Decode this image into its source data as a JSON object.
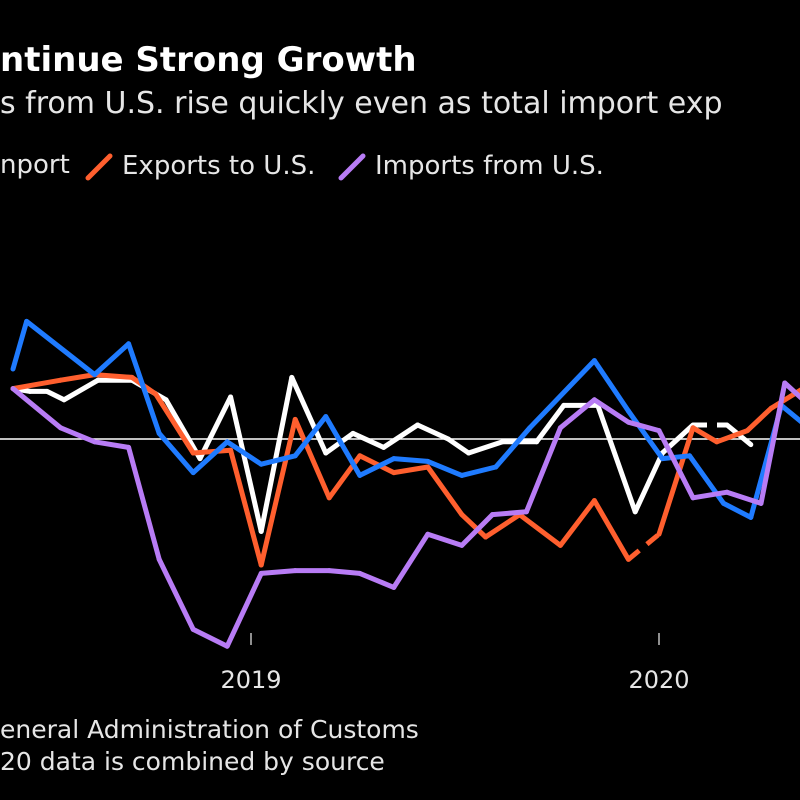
{
  "header": {
    "title": "ntinue Strong Growth",
    "subtitle": "s from U.S. rise quickly even as total import exp"
  },
  "legend": [
    {
      "label": "nport",
      "color": "#ffffff"
    },
    {
      "label": "Exports to U.S.",
      "color": "#ff5f2e"
    },
    {
      "label": "Imports from U.S.",
      "color": "#b87cf5"
    }
  ],
  "source": {
    "line1": "eneral Administration of Customs",
    "line2": "20 data is combined by source"
  },
  "colors": {
    "background": "#000000",
    "white_series": "#ffffff",
    "blue_series": "#1f7bff",
    "orange_series": "#ff5f2e",
    "purple_series": "#b87cf5"
  },
  "chart_data": {
    "type": "line",
    "x_unit": "month index (0 = 2018-06)",
    "x_ticks": [
      {
        "label": "2019",
        "x": 7
      },
      {
        "label": "2020",
        "x": 19
      }
    ],
    "xlim": [
      0,
      23.6
    ],
    "ylim": [
      -1,
      1
    ],
    "zero_line": true,
    "series": [
      {
        "name": "nport",
        "color": "#ffffff",
        "points": [
          [
            0,
            0.18
          ],
          [
            0.5,
            0.17
          ],
          [
            1,
            0.17
          ],
          [
            1.5,
            0.14
          ],
          [
            2.5,
            0.21
          ],
          [
            3.5,
            0.21
          ],
          [
            4.5,
            0.14
          ],
          [
            5.5,
            -0.07
          ],
          [
            6.4,
            0.15
          ],
          [
            7.3,
            -0.33
          ],
          [
            8.2,
            0.22
          ],
          [
            9.2,
            -0.05
          ],
          [
            10,
            0.02
          ],
          [
            10.9,
            -0.03
          ],
          [
            11.9,
            0.05
          ],
          [
            12.8,
            0
          ],
          [
            13.4,
            -0.05
          ],
          [
            14.4,
            -0.01
          ],
          [
            15.4,
            -0.01
          ],
          [
            16.2,
            0.12
          ],
          [
            17.2,
            0.12
          ],
          [
            17.2,
            0.12
          ],
          [
            18.3,
            -0.26
          ],
          [
            19.1,
            -0.05
          ],
          [
            20,
            0.05
          ],
          [
            21,
            0.05
          ],
          [
            21.7,
            -0.02
          ]
        ],
        "dashed_segments": [
          [
            20,
            21
          ]
        ]
      },
      {
        "name": "Exports to U.S.",
        "color": "#ff5f2e",
        "points": [
          [
            0,
            0.18
          ],
          [
            1.4,
            0.21
          ],
          [
            2.4,
            0.23
          ],
          [
            3.5,
            0.22
          ],
          [
            4.2,
            0.16
          ],
          [
            5.3,
            -0.05
          ],
          [
            6.4,
            -0.04
          ],
          [
            7.3,
            -0.45
          ],
          [
            8.3,
            0.07
          ],
          [
            9.3,
            -0.21
          ],
          [
            10.2,
            -0.06
          ],
          [
            11.2,
            -0.12
          ],
          [
            12.2,
            -0.1
          ],
          [
            13.2,
            -0.27
          ],
          [
            13.9,
            -0.35
          ],
          [
            14.9,
            -0.27
          ],
          [
            16.1,
            -0.38
          ],
          [
            17.1,
            -0.22
          ],
          [
            18.1,
            -0.43
          ],
          [
            19,
            -0.34
          ],
          [
            20,
            0.04
          ],
          [
            20.7,
            -0.01
          ],
          [
            21.6,
            0.03
          ],
          [
            22.3,
            0.11
          ],
          [
            23.5,
            0.2
          ]
        ],
        "dashed_segments": [
          [
            18,
            19
          ]
        ]
      },
      {
        "name": "",
        "color": "#1f7bff",
        "points": [
          [
            0,
            0.25
          ],
          [
            0.4,
            0.42
          ],
          [
            2.4,
            0.23
          ],
          [
            3.4,
            0.34
          ],
          [
            4.3,
            0.02
          ],
          [
            5.3,
            -0.12
          ],
          [
            6.3,
            -0.01
          ],
          [
            7.3,
            -0.09
          ],
          [
            8.3,
            -0.06
          ],
          [
            9.2,
            0.08
          ],
          [
            10.2,
            -0.13
          ],
          [
            11.2,
            -0.07
          ],
          [
            12.2,
            -0.08
          ],
          [
            13.2,
            -0.13
          ],
          [
            14.2,
            -0.1
          ],
          [
            15.2,
            0.04
          ],
          [
            17.1,
            0.28
          ],
          [
            18.1,
            0.1
          ],
          [
            19.1,
            -0.07
          ],
          [
            19.9,
            -0.06
          ],
          [
            20.9,
            -0.23
          ],
          [
            21.7,
            -0.28
          ],
          [
            22.6,
            0.12
          ],
          [
            23.5,
            0.03
          ]
        ],
        "dashed_segments": [
          [
            16,
            17
          ]
        ]
      },
      {
        "name": "Imports from U.S.",
        "color": "#b87cf5",
        "points": [
          [
            0,
            0.18
          ],
          [
            1.4,
            0.04
          ],
          [
            2.4,
            -0.01
          ],
          [
            3.4,
            -0.03
          ],
          [
            4.3,
            -0.43
          ],
          [
            5.3,
            -0.68
          ],
          [
            6.3,
            -0.74
          ],
          [
            7.3,
            -0.48
          ],
          [
            8.3,
            -0.47
          ],
          [
            9.3,
            -0.47
          ],
          [
            10.2,
            -0.48
          ],
          [
            11.2,
            -0.53
          ],
          [
            12.2,
            -0.34
          ],
          [
            13.2,
            -0.38
          ],
          [
            14.1,
            -0.27
          ],
          [
            15.1,
            -0.26
          ],
          [
            16.1,
            0.04
          ],
          [
            17.1,
            0.14
          ],
          [
            18.1,
            0.06
          ],
          [
            19,
            0.03
          ],
          [
            20,
            -0.21
          ],
          [
            21,
            -0.19
          ],
          [
            22,
            -0.23
          ],
          [
            22.7,
            0.2
          ],
          [
            23.6,
            0.1
          ]
        ],
        "dashed_segments": [
          [
            17,
            18
          ]
        ]
      }
    ]
  }
}
